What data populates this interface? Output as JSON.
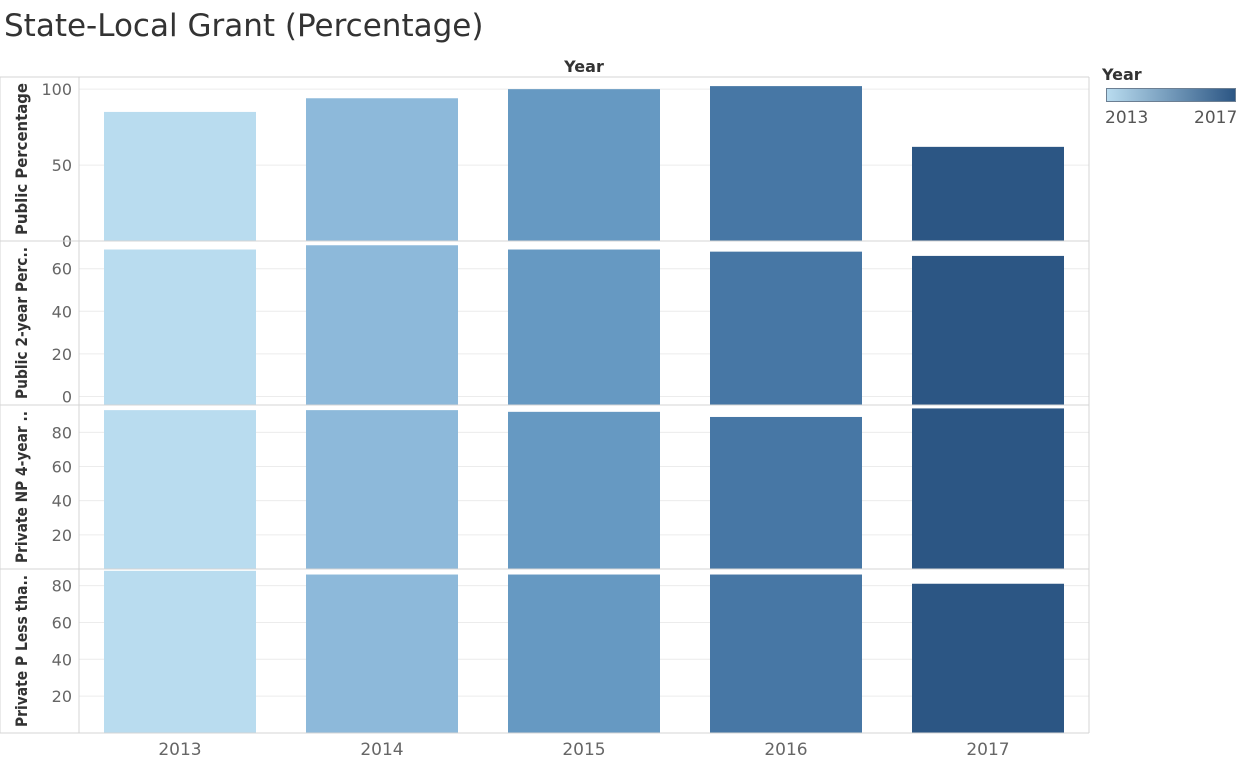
{
  "title": "State-Local Grant (Percentage)",
  "column_header": "Year",
  "legend": {
    "title": "Year",
    "min_label": "2013",
    "max_label": "2017",
    "color_low": "#b9dcef",
    "color_high": "#2c5684"
  },
  "year_colors": {
    "2013": "#b9dcef",
    "2014": "#8db9da",
    "2015": "#6699c2",
    "2016": "#4777a5",
    "2017": "#2c5684"
  },
  "chart_data": {
    "type": "bar",
    "categories": [
      "2013",
      "2014",
      "2015",
      "2016",
      "2017"
    ],
    "xlabel": "",
    "grid": true,
    "panels": [
      {
        "label": "Public Percentage",
        "ylim": [
          0,
          108
        ],
        "ticks": [
          0,
          50,
          100
        ],
        "values": [
          85,
          94,
          100,
          102,
          62
        ]
      },
      {
        "label": "Public 2-year Perc..",
        "ylim": [
          -4,
          73
        ],
        "ticks": [
          0,
          20,
          40,
          60
        ],
        "values": [
          69,
          71,
          69,
          68,
          66
        ]
      },
      {
        "label": "Private NP 4-year ..",
        "ylim": [
          0,
          96
        ],
        "ticks": [
          20,
          40,
          60,
          80
        ],
        "values": [
          93,
          93,
          92,
          89,
          94
        ]
      },
      {
        "label": "Private P Less tha..",
        "ylim": [
          0,
          89
        ],
        "ticks": [
          20,
          40,
          60,
          80
        ],
        "values": [
          88,
          86,
          86,
          86,
          81
        ]
      }
    ]
  }
}
